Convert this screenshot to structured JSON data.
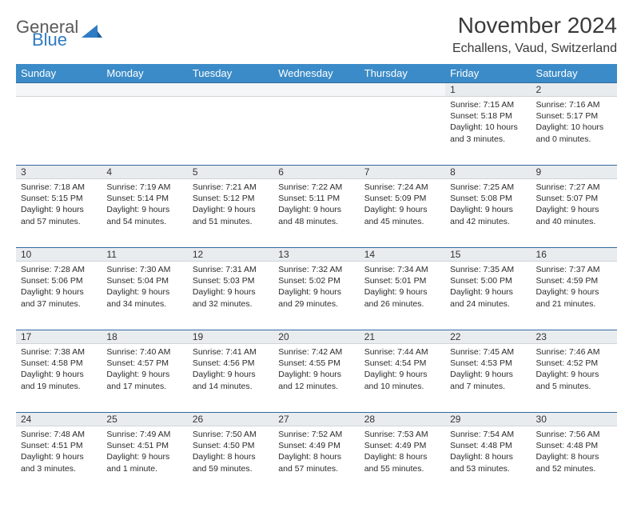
{
  "logo": {
    "word1": "General",
    "word2": "Blue",
    "word1_color": "#5a5a5a",
    "word2_color": "#2f7bc4",
    "triangle_color": "#2f7bc4"
  },
  "title": "November 2024",
  "location": "Echallens, Vaud, Switzerland",
  "header_bg": "#3b8bc8",
  "daynum_bg": "#e9ecef",
  "border_top_color": "#2f6aa0",
  "day_names": [
    "Sunday",
    "Monday",
    "Tuesday",
    "Wednesday",
    "Thursday",
    "Friday",
    "Saturday"
  ],
  "weeks": [
    [
      null,
      null,
      null,
      null,
      null,
      {
        "n": "1",
        "sr": "7:15 AM",
        "ss": "5:18 PM",
        "dl": "10 hours and 3 minutes."
      },
      {
        "n": "2",
        "sr": "7:16 AM",
        "ss": "5:17 PM",
        "dl": "10 hours and 0 minutes."
      }
    ],
    [
      {
        "n": "3",
        "sr": "7:18 AM",
        "ss": "5:15 PM",
        "dl": "9 hours and 57 minutes."
      },
      {
        "n": "4",
        "sr": "7:19 AM",
        "ss": "5:14 PM",
        "dl": "9 hours and 54 minutes."
      },
      {
        "n": "5",
        "sr": "7:21 AM",
        "ss": "5:12 PM",
        "dl": "9 hours and 51 minutes."
      },
      {
        "n": "6",
        "sr": "7:22 AM",
        "ss": "5:11 PM",
        "dl": "9 hours and 48 minutes."
      },
      {
        "n": "7",
        "sr": "7:24 AM",
        "ss": "5:09 PM",
        "dl": "9 hours and 45 minutes."
      },
      {
        "n": "8",
        "sr": "7:25 AM",
        "ss": "5:08 PM",
        "dl": "9 hours and 42 minutes."
      },
      {
        "n": "9",
        "sr": "7:27 AM",
        "ss": "5:07 PM",
        "dl": "9 hours and 40 minutes."
      }
    ],
    [
      {
        "n": "10",
        "sr": "7:28 AM",
        "ss": "5:06 PM",
        "dl": "9 hours and 37 minutes."
      },
      {
        "n": "11",
        "sr": "7:30 AM",
        "ss": "5:04 PM",
        "dl": "9 hours and 34 minutes."
      },
      {
        "n": "12",
        "sr": "7:31 AM",
        "ss": "5:03 PM",
        "dl": "9 hours and 32 minutes."
      },
      {
        "n": "13",
        "sr": "7:32 AM",
        "ss": "5:02 PM",
        "dl": "9 hours and 29 minutes."
      },
      {
        "n": "14",
        "sr": "7:34 AM",
        "ss": "5:01 PM",
        "dl": "9 hours and 26 minutes."
      },
      {
        "n": "15",
        "sr": "7:35 AM",
        "ss": "5:00 PM",
        "dl": "9 hours and 24 minutes."
      },
      {
        "n": "16",
        "sr": "7:37 AM",
        "ss": "4:59 PM",
        "dl": "9 hours and 21 minutes."
      }
    ],
    [
      {
        "n": "17",
        "sr": "7:38 AM",
        "ss": "4:58 PM",
        "dl": "9 hours and 19 minutes."
      },
      {
        "n": "18",
        "sr": "7:40 AM",
        "ss": "4:57 PM",
        "dl": "9 hours and 17 minutes."
      },
      {
        "n": "19",
        "sr": "7:41 AM",
        "ss": "4:56 PM",
        "dl": "9 hours and 14 minutes."
      },
      {
        "n": "20",
        "sr": "7:42 AM",
        "ss": "4:55 PM",
        "dl": "9 hours and 12 minutes."
      },
      {
        "n": "21",
        "sr": "7:44 AM",
        "ss": "4:54 PM",
        "dl": "9 hours and 10 minutes."
      },
      {
        "n": "22",
        "sr": "7:45 AM",
        "ss": "4:53 PM",
        "dl": "9 hours and 7 minutes."
      },
      {
        "n": "23",
        "sr": "7:46 AM",
        "ss": "4:52 PM",
        "dl": "9 hours and 5 minutes."
      }
    ],
    [
      {
        "n": "24",
        "sr": "7:48 AM",
        "ss": "4:51 PM",
        "dl": "9 hours and 3 minutes."
      },
      {
        "n": "25",
        "sr": "7:49 AM",
        "ss": "4:51 PM",
        "dl": "9 hours and 1 minute."
      },
      {
        "n": "26",
        "sr": "7:50 AM",
        "ss": "4:50 PM",
        "dl": "8 hours and 59 minutes."
      },
      {
        "n": "27",
        "sr": "7:52 AM",
        "ss": "4:49 PM",
        "dl": "8 hours and 57 minutes."
      },
      {
        "n": "28",
        "sr": "7:53 AM",
        "ss": "4:49 PM",
        "dl": "8 hours and 55 minutes."
      },
      {
        "n": "29",
        "sr": "7:54 AM",
        "ss": "4:48 PM",
        "dl": "8 hours and 53 minutes."
      },
      {
        "n": "30",
        "sr": "7:56 AM",
        "ss": "4:48 PM",
        "dl": "8 hours and 52 minutes."
      }
    ]
  ],
  "labels": {
    "sunrise": "Sunrise: ",
    "sunset": "Sunset: ",
    "daylight": "Daylight: "
  }
}
